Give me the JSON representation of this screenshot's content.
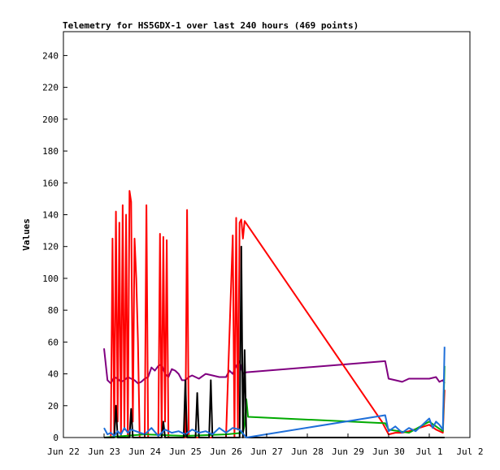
{
  "chart_data": {
    "type": "line",
    "title": "Telemetry for HS5GDX-1 over last 240 hours (469 points)",
    "xlabel": "",
    "ylabel": "Values",
    "xlim": [
      "2020-06-22T00:00",
      "2020-07-02T00:00"
    ],
    "ylim": [
      0,
      255
    ],
    "x_ticks": [
      "Jun 22",
      "Jun 23",
      "Jun 24",
      "Jun 25",
      "Jun 26",
      "Jun 27",
      "Jun 28",
      "Jun 29",
      "Jun 30",
      "Jul 1",
      "Jul 2"
    ],
    "y_ticks": [
      0,
      20,
      40,
      60,
      80,
      100,
      120,
      140,
      160,
      180,
      200,
      220,
      240
    ],
    "grid": false,
    "legend": "none",
    "series": [
      {
        "color": "#800080",
        "x": [
          "2020-06-23T00:00",
          "2020-06-23T02:00",
          "2020-06-23T04:00",
          "2020-06-23T06:00",
          "2020-06-23T08:00",
          "2020-06-23T10:00",
          "2020-06-23T12:00",
          "2020-06-23T14:00",
          "2020-06-23T16:00",
          "2020-06-23T18:00",
          "2020-06-23T20:00",
          "2020-06-23T22:00",
          "2020-06-24T00:00",
          "2020-06-24T02:00",
          "2020-06-24T04:00",
          "2020-06-24T06:00",
          "2020-06-24T08:00",
          "2020-06-24T10:00",
          "2020-06-24T12:00",
          "2020-06-24T14:00",
          "2020-06-24T16:00",
          "2020-06-24T18:00",
          "2020-06-24T20:00",
          "2020-06-24T22:00",
          "2020-06-25T00:00",
          "2020-06-25T02:00",
          "2020-06-25T04:00",
          "2020-06-25T06:00",
          "2020-06-25T08:00",
          "2020-06-25T12:00",
          "2020-06-25T16:00",
          "2020-06-25T20:00",
          "2020-06-26T00:00",
          "2020-06-26T02:00",
          "2020-06-26T04:00",
          "2020-06-26T06:00",
          "2020-06-26T08:00",
          "2020-06-26T10:00",
          "2020-06-26T12:00",
          "2020-06-29T22:00",
          "2020-06-30T00:00",
          "2020-06-30T04:00",
          "2020-06-30T08:00",
          "2020-06-30T12:00",
          "2020-06-30T16:00",
          "2020-06-30T20:00",
          "2020-07-01T00:00",
          "2020-07-01T04:00",
          "2020-07-01T06:00",
          "2020-07-01T08:00",
          "2020-07-01T09:00"
        ],
        "y": [
          56,
          36,
          34,
          38,
          37,
          35,
          36,
          38,
          37,
          36,
          34,
          35,
          37,
          38,
          44,
          42,
          45,
          46,
          40,
          38,
          43,
          42,
          40,
          36,
          36,
          38,
          39,
          38,
          37,
          40,
          39,
          38,
          38,
          42,
          40,
          45,
          48,
          40,
          41,
          48,
          37,
          36,
          35,
          37,
          37,
          37,
          37,
          38,
          35,
          36,
          34
        ]
      },
      {
        "color": "#ff0000",
        "x": [
          "2020-06-23T04:00",
          "2020-06-23T05:00",
          "2020-06-23T06:00",
          "2020-06-23T07:00",
          "2020-06-23T08:00",
          "2020-06-23T09:00",
          "2020-06-23T10:00",
          "2020-06-23T11:00",
          "2020-06-23T12:00",
          "2020-06-23T13:00",
          "2020-06-23T14:00",
          "2020-06-23T15:00",
          "2020-06-23T16:00",
          "2020-06-23T17:00",
          "2020-06-23T18:00",
          "2020-06-23T19:00",
          "2020-06-23T20:00",
          "2020-06-23T21:00",
          "2020-06-23T22:00",
          "2020-06-24T00:00",
          "2020-06-24T01:00",
          "2020-06-24T02:00",
          "2020-06-24T08:00",
          "2020-06-24T09:00",
          "2020-06-24T10:00",
          "2020-06-24T11:00",
          "2020-06-24T12:00",
          "2020-06-24T13:00",
          "2020-06-24T14:00",
          "2020-06-24T16:00",
          "2020-06-24T18:00",
          "2020-06-24T20:00",
          "2020-06-25T00:00",
          "2020-06-25T01:00",
          "2020-06-25T02:00",
          "2020-06-25T04:00",
          "2020-06-25T08:00",
          "2020-06-25T12:00",
          "2020-06-25T16:00",
          "2020-06-25T20:00",
          "2020-06-26T00:00",
          "2020-06-26T04:00",
          "2020-06-26T05:00",
          "2020-06-26T06:00",
          "2020-06-26T07:00",
          "2020-06-26T08:00",
          "2020-06-26T09:00",
          "2020-06-26T10:00",
          "2020-06-26T11:00",
          "2020-06-29T20:00",
          "2020-06-30T00:00",
          "2020-06-30T04:00",
          "2020-06-30T08:00",
          "2020-06-30T12:00",
          "2020-07-01T00:00",
          "2020-07-01T04:00",
          "2020-07-01T08:00",
          "2020-07-01T09:00"
        ],
        "y": [
          0,
          125,
          0,
          142,
          10,
          135,
          0,
          146,
          5,
          140,
          0,
          155,
          148,
          10,
          125,
          100,
          60,
          0,
          0,
          0,
          146,
          0,
          0,
          128,
          0,
          126,
          10,
          124,
          0,
          0,
          0,
          0,
          0,
          143,
          0,
          0,
          0,
          0,
          0,
          0,
          0,
          127,
          0,
          138,
          5,
          135,
          137,
          125,
          136,
          10,
          2,
          3,
          3,
          4,
          8,
          5,
          3,
          30
        ]
      },
      {
        "color": "#00aa00",
        "x": [
          "2020-06-23T00:00",
          "2020-06-24T00:00",
          "2020-06-25T00:00",
          "2020-06-26T00:00",
          "2020-06-26T10:00",
          "2020-06-26T11:00",
          "2020-06-26T12:00",
          "2020-06-26T13:00",
          "2020-06-29T22:00",
          "2020-06-30T00:00",
          "2020-06-30T12:00",
          "2020-07-01T00:00",
          "2020-07-01T08:00",
          "2020-07-01T09:00"
        ],
        "y": [
          0,
          2,
          1,
          2,
          3,
          8,
          24,
          13,
          9,
          5,
          3,
          10,
          4,
          45
        ]
      },
      {
        "color": "#000000",
        "x": [
          "2020-06-23T00:00",
          "2020-06-23T06:00",
          "2020-06-23T07:00",
          "2020-06-23T08:00",
          "2020-06-23T15:00",
          "2020-06-23T16:00",
          "2020-06-23T17:00",
          "2020-06-24T10:00",
          "2020-06-24T11:00",
          "2020-06-24T12:00",
          "2020-06-24T23:00",
          "2020-06-25T00:00",
          "2020-06-25T01:00",
          "2020-06-25T06:00",
          "2020-06-25T07:00",
          "2020-06-25T08:00",
          "2020-06-25T14:00",
          "2020-06-25T15:00",
          "2020-06-25T16:00",
          "2020-06-26T08:00",
          "2020-06-26T09:00",
          "2020-06-26T10:00",
          "2020-06-26T11:00",
          "2020-06-26T12:00",
          "2020-07-01T09:00"
        ],
        "y": [
          0,
          0,
          20,
          0,
          0,
          18,
          0,
          0,
          10,
          0,
          0,
          36,
          0,
          0,
          28,
          0,
          0,
          36,
          0,
          0,
          120,
          0,
          55,
          0,
          0
        ]
      },
      {
        "color": "#1e6fd9",
        "x": [
          "2020-06-23T00:00",
          "2020-06-23T02:00",
          "2020-06-23T04:00",
          "2020-06-23T06:00",
          "2020-06-23T08:00",
          "2020-06-23T10:00",
          "2020-06-23T12:00",
          "2020-06-23T14:00",
          "2020-06-23T16:00",
          "2020-06-24T00:00",
          "2020-06-24T04:00",
          "2020-06-24T08:00",
          "2020-06-24T12:00",
          "2020-06-24T16:00",
          "2020-06-24T20:00",
          "2020-06-25T00:00",
          "2020-06-25T04:00",
          "2020-06-25T08:00",
          "2020-06-25T12:00",
          "2020-06-25T16:00",
          "2020-06-25T20:00",
          "2020-06-26T00:00",
          "2020-06-26T04:00",
          "2020-06-26T08:00",
          "2020-06-26T12:00",
          "2020-06-29T22:00",
          "2020-06-30T00:00",
          "2020-06-30T04:00",
          "2020-06-30T08:00",
          "2020-06-30T12:00",
          "2020-06-30T16:00",
          "2020-07-01T00:00",
          "2020-07-01T02:00",
          "2020-07-01T04:00",
          "2020-07-01T06:00",
          "2020-07-01T08:00",
          "2020-07-01T09:00"
        ],
        "y": [
          6,
          2,
          3,
          1,
          4,
          2,
          6,
          3,
          5,
          2,
          6,
          1,
          5,
          3,
          4,
          2,
          5,
          3,
          4,
          2,
          6,
          3,
          6,
          5,
          0,
          14,
          4,
          7,
          3,
          6,
          4,
          12,
          6,
          10,
          8,
          5,
          57
        ]
      }
    ]
  }
}
